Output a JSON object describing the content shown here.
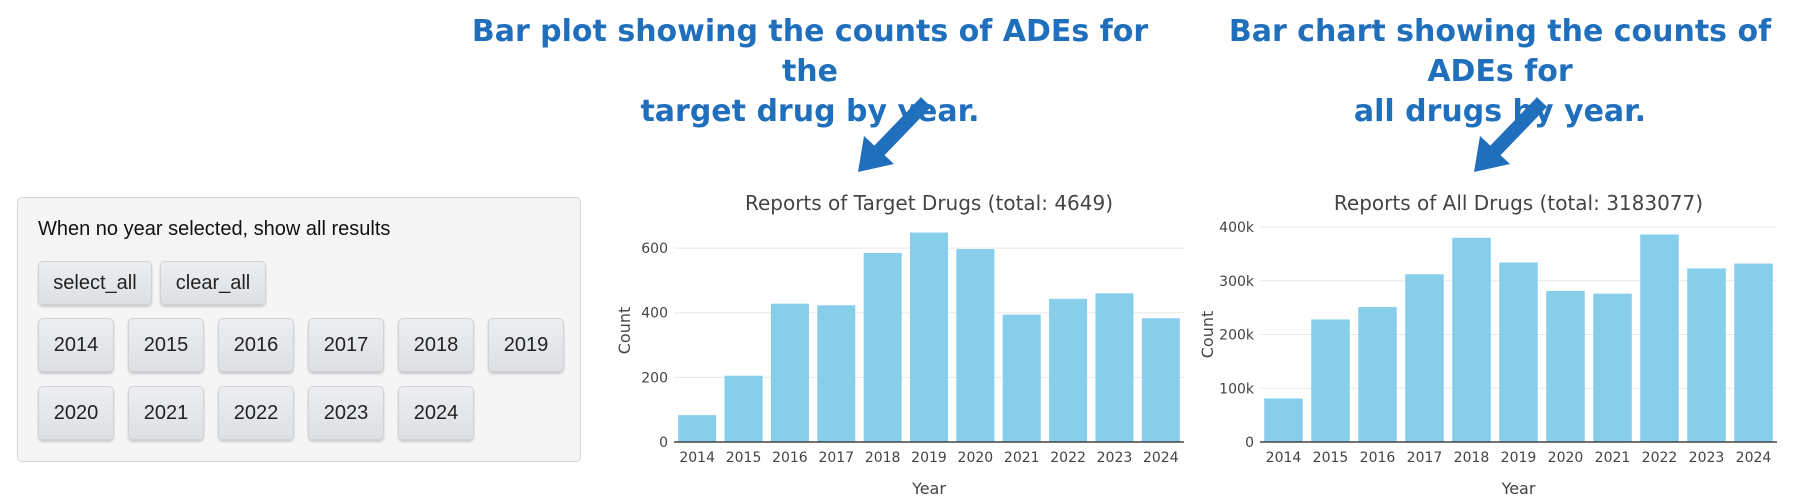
{
  "callouts": {
    "left_line1": "Bar plot showing the counts of ADEs for the",
    "left_line2": "target drug by year.",
    "right_line1": "Bar chart showing the counts of ADEs for",
    "right_line2": "all drugs by year."
  },
  "year_panel": {
    "label": "When no year selected, show all results",
    "select_all": "select_all",
    "clear_all": "clear_all",
    "years": [
      "2014",
      "2015",
      "2016",
      "2017",
      "2018",
      "2019",
      "2020",
      "2021",
      "2022",
      "2023",
      "2024"
    ]
  },
  "colors": {
    "bar": "#87ceeb",
    "callout": "#1f6fbd",
    "axis": "#444444",
    "grid": "#e8e8e8"
  },
  "chart_data": [
    {
      "type": "bar",
      "title": "Reports of Target Drugs (total: 4649)",
      "xlabel": "Year",
      "ylabel": "Count",
      "categories": [
        "2014",
        "2015",
        "2016",
        "2017",
        "2018",
        "2019",
        "2020",
        "2021",
        "2022",
        "2023",
        "2024"
      ],
      "values": [
        83,
        205,
        428,
        423,
        585,
        648,
        597,
        394,
        443,
        460,
        383
      ],
      "ylim": [
        0,
        690
      ],
      "yticks": [
        0,
        200,
        400,
        600
      ],
      "ytick_labels": [
        "0",
        "200",
        "400",
        "600"
      ],
      "grid": true
    },
    {
      "type": "bar",
      "title": "Reports of All Drugs (total: 3183077)",
      "xlabel": "Year",
      "ylabel": "Count",
      "categories": [
        "2014",
        "2015",
        "2016",
        "2017",
        "2018",
        "2019",
        "2020",
        "2021",
        "2022",
        "2023",
        "2024"
      ],
      "values": [
        81000,
        228000,
        251000,
        312000,
        380000,
        334000,
        281000,
        276000,
        386000,
        323000,
        332000
      ],
      "ylim": [
        0,
        400000
      ],
      "yticks": [
        0,
        100000,
        200000,
        300000,
        400000
      ],
      "ytick_labels": [
        "0",
        "100k",
        "200k",
        "300k",
        "400k"
      ],
      "grid": true
    }
  ]
}
